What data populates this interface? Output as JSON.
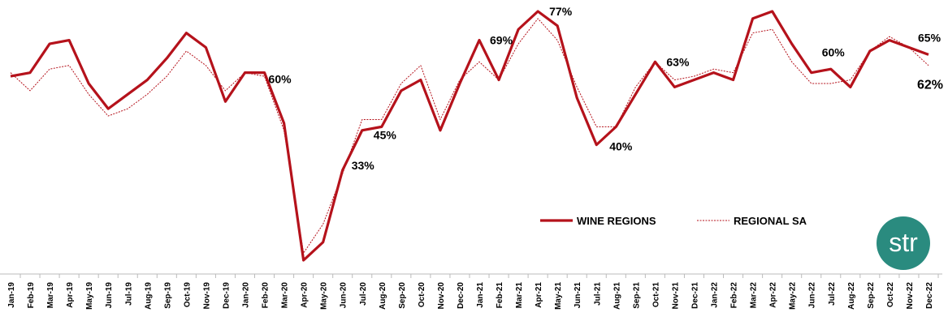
{
  "chart_data": {
    "type": "line",
    "categories": [
      "Jan-19",
      "Feb-19",
      "Mar-19",
      "Apr-19",
      "May-19",
      "Jun-19",
      "Jul-19",
      "Aug-19",
      "Sep-19",
      "Oct-19",
      "Nov-19",
      "Dec-19",
      "Jan-20",
      "Feb-20",
      "Mar-20",
      "Apr-20",
      "May-20",
      "Jun-20",
      "Jul-20",
      "Aug-20",
      "Sep-20",
      "Oct-20",
      "Nov-20",
      "Dec-20",
      "Jan-21",
      "Feb-21",
      "Mar-21",
      "Apr-21",
      "May-21",
      "Jun-21",
      "Jul-21",
      "Aug-21",
      "Sep-21",
      "Oct-21",
      "Nov-21",
      "Dec-21",
      "Jan-22",
      "Feb-22",
      "Mar-22",
      "Apr-22",
      "May-22",
      "Jun-22",
      "Jul-22",
      "Aug-22",
      "Sep-22",
      "Oct-22",
      "Nov-22",
      "Dec-22"
    ],
    "series": [
      {
        "name": "WINE REGIONS",
        "color": "#b5121b",
        "style": "solid",
        "values": [
          59,
          60,
          68,
          69,
          57,
          50,
          54,
          58,
          64,
          71,
          67,
          52,
          60,
          60,
          46,
          8,
          13,
          33,
          44,
          45,
          55,
          58,
          44,
          57,
          69,
          58,
          72,
          77,
          73,
          53,
          40,
          45,
          54,
          63,
          56,
          58,
          60,
          58,
          75,
          77,
          68,
          60,
          61,
          56,
          66,
          69,
          67,
          65
        ],
        "value_labels": [
          null,
          null,
          null,
          null,
          null,
          null,
          null,
          null,
          null,
          null,
          null,
          null,
          null,
          "60%",
          null,
          null,
          null,
          "33%",
          null,
          "45%",
          null,
          null,
          null,
          null,
          "69%",
          null,
          null,
          "77%",
          null,
          null,
          "40%",
          null,
          null,
          "63%",
          null,
          null,
          null,
          null,
          null,
          null,
          null,
          "60%",
          null,
          null,
          null,
          null,
          null,
          "65%"
        ]
      },
      {
        "name": "REGIONAL SA",
        "color": "#b5121b",
        "style": "dotted",
        "values": [
          60,
          55,
          61,
          62,
          54,
          48,
          50,
          54,
          59,
          66,
          62,
          55,
          60,
          59,
          44,
          10,
          18,
          32,
          47,
          47,
          57,
          62,
          47,
          58,
          63,
          58,
          68,
          75,
          69,
          56,
          45,
          45,
          56,
          63,
          58,
          59,
          61,
          60,
          71,
          72,
          63,
          57,
          57,
          58,
          66,
          70,
          67,
          62
        ],
        "value_labels": [
          null,
          null,
          null,
          null,
          null,
          null,
          null,
          null,
          null,
          null,
          null,
          null,
          null,
          null,
          null,
          null,
          null,
          null,
          null,
          null,
          null,
          null,
          null,
          null,
          null,
          null,
          null,
          null,
          null,
          null,
          null,
          null,
          null,
          null,
          null,
          null,
          null,
          null,
          null,
          null,
          null,
          null,
          null,
          null,
          null,
          null,
          null,
          "62%"
        ]
      }
    ],
    "legend": "bottom-right"
  },
  "logo": "str"
}
